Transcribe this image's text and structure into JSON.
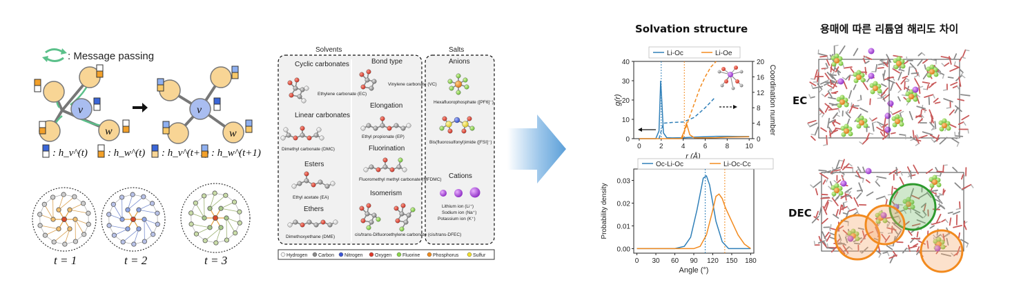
{
  "message_passing": {
    "legend": ": Message passing",
    "node_v": "v",
    "node_w": "w",
    "labels": [
      ": h_v^(t)",
      ": h_w^(t)",
      ": h_v^(t+1)",
      ": h_w^(t+1)"
    ],
    "steps": [
      "t = 1",
      "t = 2",
      "t = 3"
    ],
    "colors": {
      "node": "#f8d595",
      "center": "#a9bdf0",
      "arrow": "#5bc08a",
      "blue": "#3a66d8",
      "orange": "#f2a02a"
    }
  },
  "solvents_panel": {
    "title": "Solvents",
    "columns": {
      "left": [
        "Cyclic carbonates",
        "Linear carbonates",
        "Esters",
        "Ethers"
      ],
      "right": [
        "Bond type",
        "Elongation",
        "Fluorination",
        "Isomerism"
      ]
    },
    "molecules": {
      "ec": "Ethylene carbonate (EC)",
      "dmc": "Dimethyl carbonate (DMC)",
      "ea": "Ethyl acetate (EA)",
      "dme": "Dimethoxyethane (DME)",
      "vc": "Vinylene carbonate (VC)",
      "ep": "Ethyl propionate (EP)",
      "mfdmc": "Fluoromethyl methyl carbonate (MFDMC)",
      "dfec": "cis/trans-Difluoroethylene carbonate (cis/trans-DFEC)"
    }
  },
  "salts_panel": {
    "title": "Salts",
    "anions_title": "Anions",
    "pf6": "Hexafluorophosphate ([PF6]⁻)",
    "fsi": "Bis(fluorosulfonyl)imide ([FSI]⁻)",
    "cations_title": "Cations",
    "cations": [
      "Lithium ion (Li⁺)",
      "Sodium ion (Na⁺)",
      "Potassium ion (K⁺)"
    ]
  },
  "atom_legend": [
    "Hydrogen",
    "Carbon",
    "Nitrogen",
    "Oxygen",
    "Fluorine",
    "Phosphorus",
    "Sulfur"
  ],
  "atom_colors": [
    "#f4f4f4",
    "#8a8a8a",
    "#3b55d6",
    "#e03a2a",
    "#8bd64a",
    "#f08a1c",
    "#f2e02c"
  ],
  "solvation": {
    "title": "Solvation structure",
    "colors": {
      "blue": "#2f7fb8",
      "orange": "#f28a1e"
    }
  },
  "chart_data": [
    {
      "type": "line",
      "series": [
        {
          "name": "Li-Oc",
          "x": [
            0,
            1.5,
            1.8,
            1.95,
            2.05,
            2.2,
            2.5,
            3,
            4,
            5,
            6,
            7,
            8,
            9,
            10
          ],
          "values": [
            0,
            0,
            4,
            30,
            20,
            3,
            0.5,
            0.4,
            0.5,
            0.8,
            1.0,
            1.2,
            1.2,
            1.1,
            1.1
          ]
        },
        {
          "name": "Li-Oe",
          "x": [
            0,
            3.8,
            4.1,
            4.3,
            4.6,
            5,
            6,
            7,
            8,
            9,
            10
          ],
          "values": [
            0,
            0,
            4,
            8,
            2,
            0.5,
            0.4,
            0.5,
            0.8,
            0.9,
            1.0
          ]
        }
      ],
      "coordination": [
        {
          "name": "Li-Oc",
          "x": [
            1.8,
            2.2,
            3,
            4,
            5,
            6,
            6.8
          ],
          "values": [
            0,
            4,
            4.2,
            4.3,
            5.5,
            8,
            10.4
          ]
        },
        {
          "name": "Li-Oe",
          "x": [
            3.9,
            4.5,
            5,
            5.5,
            6,
            6.5,
            7
          ],
          "values": [
            0,
            5,
            9,
            13,
            16,
            18.5,
            20
          ]
        }
      ],
      "vlines": [
        2.0,
        4.1
      ],
      "xlabel": "r (Å)",
      "ylabel": "g(r)",
      "y2label": "Coordination number",
      "xlim": [
        -0.5,
        10.3
      ],
      "ylim": [
        0,
        40
      ],
      "y2lim": [
        0,
        20
      ],
      "xticks": [
        "0",
        "2",
        "4",
        "6",
        "8",
        "10"
      ],
      "yticks": [
        "0",
        "10",
        "20",
        "30",
        "40"
      ],
      "y2ticks": [
        "0",
        "4",
        "8",
        "12",
        "16",
        "20"
      ]
    },
    {
      "type": "line",
      "series": [
        {
          "name": "Oc-Li-Oc",
          "x": [
            0,
            60,
            75,
            85,
            95,
            105,
            110,
            115,
            125,
            135,
            145,
            180
          ],
          "values": [
            0,
            0,
            0.001,
            0.005,
            0.017,
            0.031,
            0.032,
            0.028,
            0.012,
            0.003,
            0,
            0
          ]
        },
        {
          "name": "Li-Oc-Cc",
          "x": [
            0,
            90,
            100,
            110,
            120,
            125,
            130,
            135,
            140,
            150,
            160,
            170,
            180
          ],
          "values": [
            0,
            0,
            0.001,
            0.006,
            0.017,
            0.023,
            0.024,
            0.022,
            0.018,
            0.012,
            0.006,
            0.002,
            0
          ]
        }
      ],
      "vlines": [
        108,
        139
      ],
      "xlabel": "Angle (°)",
      "ylabel": "Probability density",
      "xlim": [
        -5,
        185
      ],
      "ylim": [
        -0.002,
        0.035
      ],
      "xticks": [
        "0",
        "30",
        "60",
        "90",
        "120",
        "150",
        "180"
      ],
      "yticks": [
        "0.00",
        "0.01",
        "0.02",
        "0.03"
      ]
    }
  ],
  "dissociation": {
    "title": "용매에 따른 리튬염 해리도 차이",
    "ec_label": "EC",
    "dec_label": "DEC"
  }
}
